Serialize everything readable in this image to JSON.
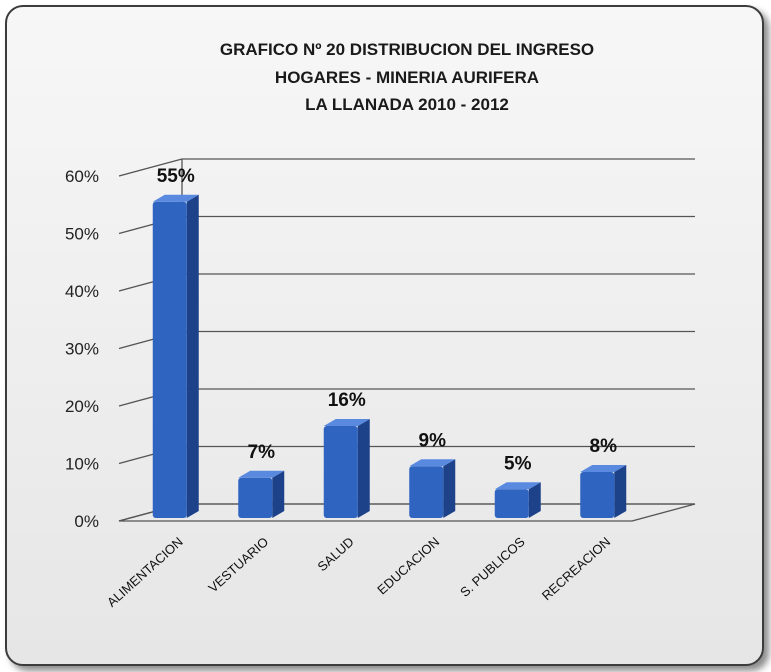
{
  "chart_data": {
    "type": "bar",
    "title_lines": [
      "GRAFICO Nº 20  DISTRIBUCION DEL INGRESO",
      "HOGARES -  MINERIA AURIFERA",
      "LA LLANADA 2010 - 2012"
    ],
    "categories": [
      "ALIMENTACION",
      "VESTUARIO",
      "SALUD",
      "EDUCACION",
      "S. PUBLICOS",
      "RECREACION"
    ],
    "values": [
      55,
      7,
      16,
      9,
      5,
      8
    ],
    "data_labels": [
      "55%",
      "7%",
      "16%",
      "9%",
      "5%",
      "8%"
    ],
    "y_ticks": [
      "0%",
      "10%",
      "20%",
      "30%",
      "40%",
      "50%",
      "60%"
    ],
    "ylim": [
      0,
      60
    ],
    "grid": true,
    "legend": "none",
    "style": "3d-column",
    "colors": {
      "bar_front": "#2f64c0",
      "bar_side": "#1d428a",
      "bar_top": "#5a8ae0",
      "grid": "#555555"
    }
  }
}
